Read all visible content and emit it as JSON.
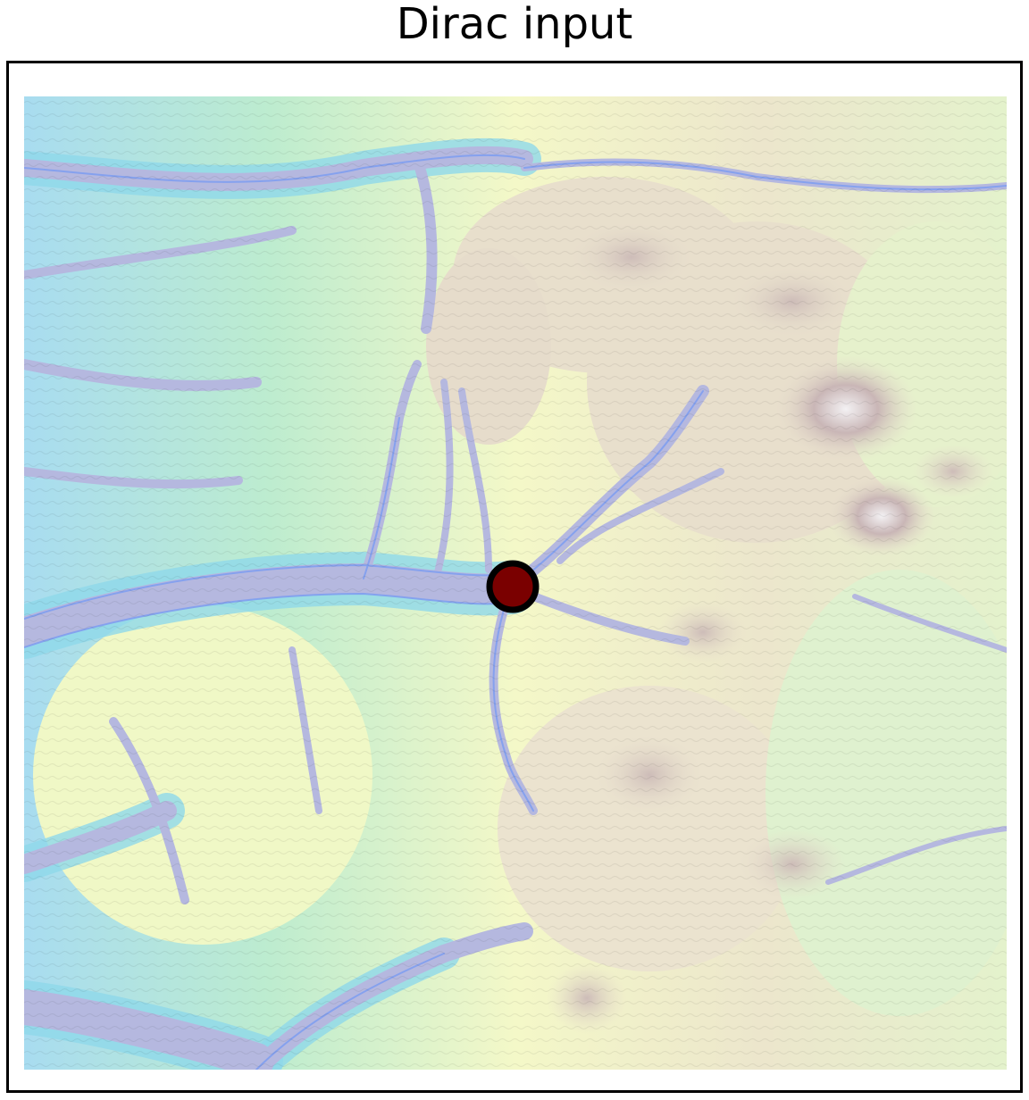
{
  "title": "Dirac input",
  "map": {
    "kind": "terrain contour map",
    "palette": {
      "valley": "#b4b8e0",
      "water_edge": "#8fa8f0",
      "low": "#a8e0f0",
      "mid_low": "#b8ecd0",
      "mid": "#f4fac8",
      "high": "#e8e0cc",
      "peak": "#c8b4b4",
      "summit": "#f2f0f2"
    },
    "marker": {
      "type": "dirac-source-point",
      "fill": "#7a0000",
      "stroke": "#000000"
    }
  }
}
